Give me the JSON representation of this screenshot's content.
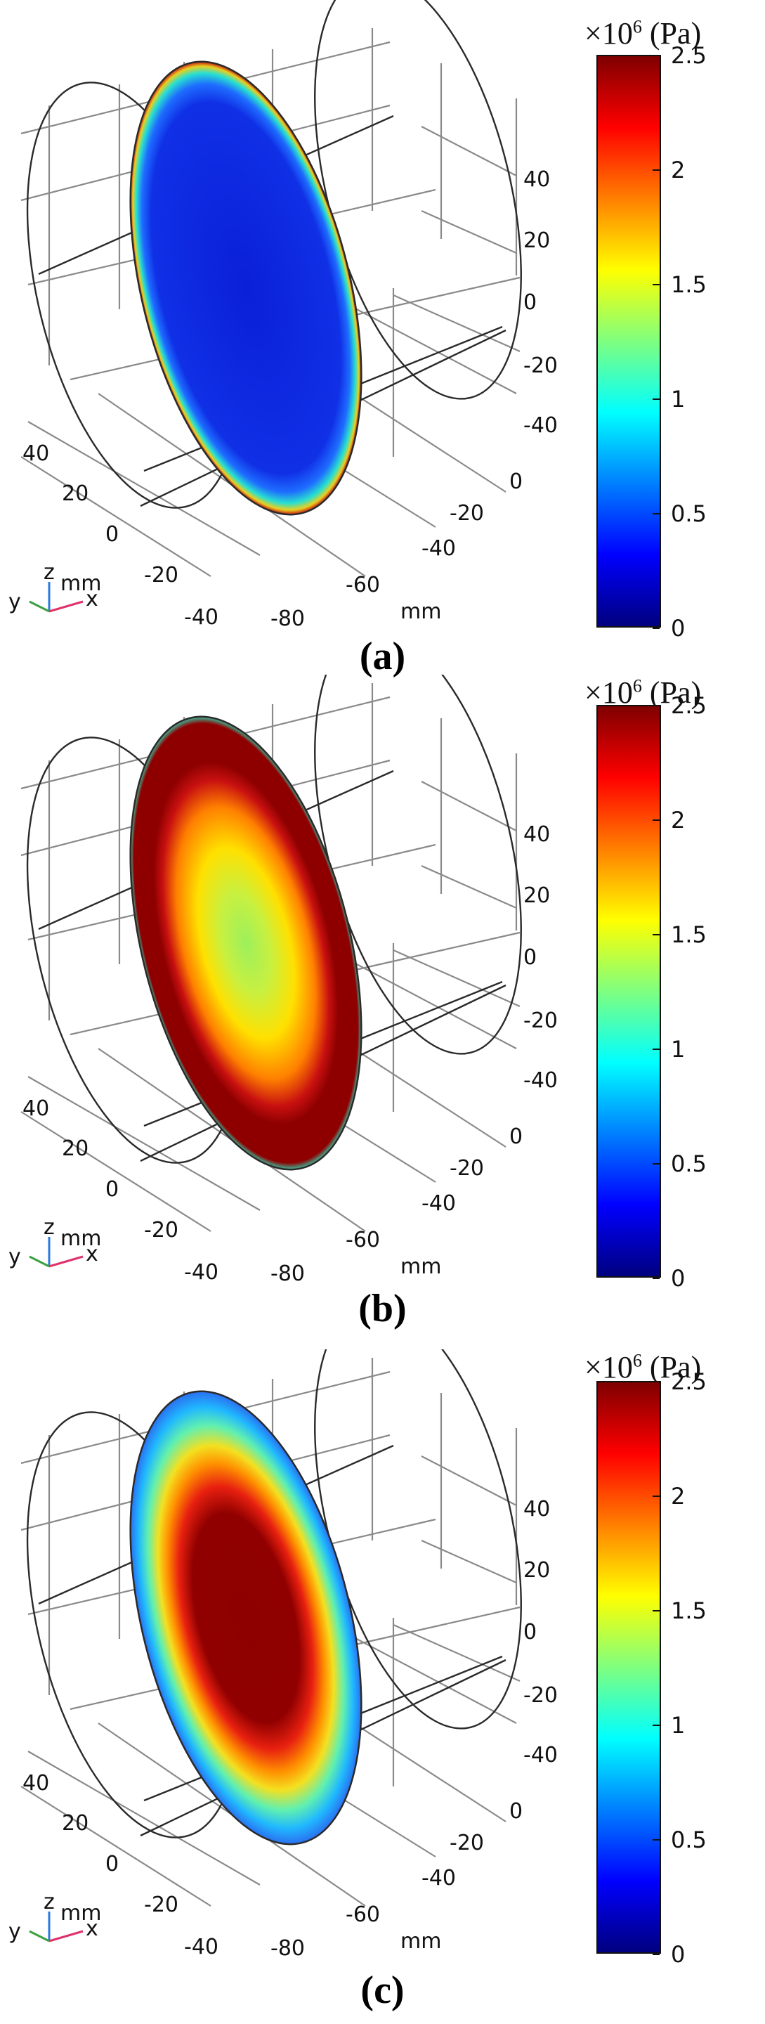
{
  "colorbar": {
    "multiplier": "×10",
    "exponent": "6",
    "unit": "(Pa)",
    "ticks": [
      "2.5",
      "2",
      "1.5",
      "1",
      "0.5",
      "0"
    ],
    "gradient": [
      "#00007f",
      "#0000ff",
      "#007fff",
      "#00ffff",
      "#7fff7f",
      "#ffff00",
      "#ff7f00",
      "#ff0000",
      "#7f0000"
    ]
  },
  "axes": {
    "z_ticks": [
      "40",
      "20",
      "0",
      "-20",
      "-40"
    ],
    "y_ticks": [
      "40",
      "20",
      "0",
      "-20",
      "-40"
    ],
    "x_ticks": [
      "-80",
      "-60",
      "-40",
      "-20",
      "0"
    ],
    "unit_x": "mm",
    "unit_z_right": "m",
    "triad": {
      "z": "z",
      "mm": "mm",
      "y": "y",
      "x": "x"
    }
  },
  "panels": [
    {
      "caption": "(a)",
      "fill": "low_center_hot_rim"
    },
    {
      "caption": "(b)",
      "fill": "hot_rim_warm_center"
    },
    {
      "caption": "(c)",
      "fill": "hot_center_cool_rim"
    }
  ]
}
